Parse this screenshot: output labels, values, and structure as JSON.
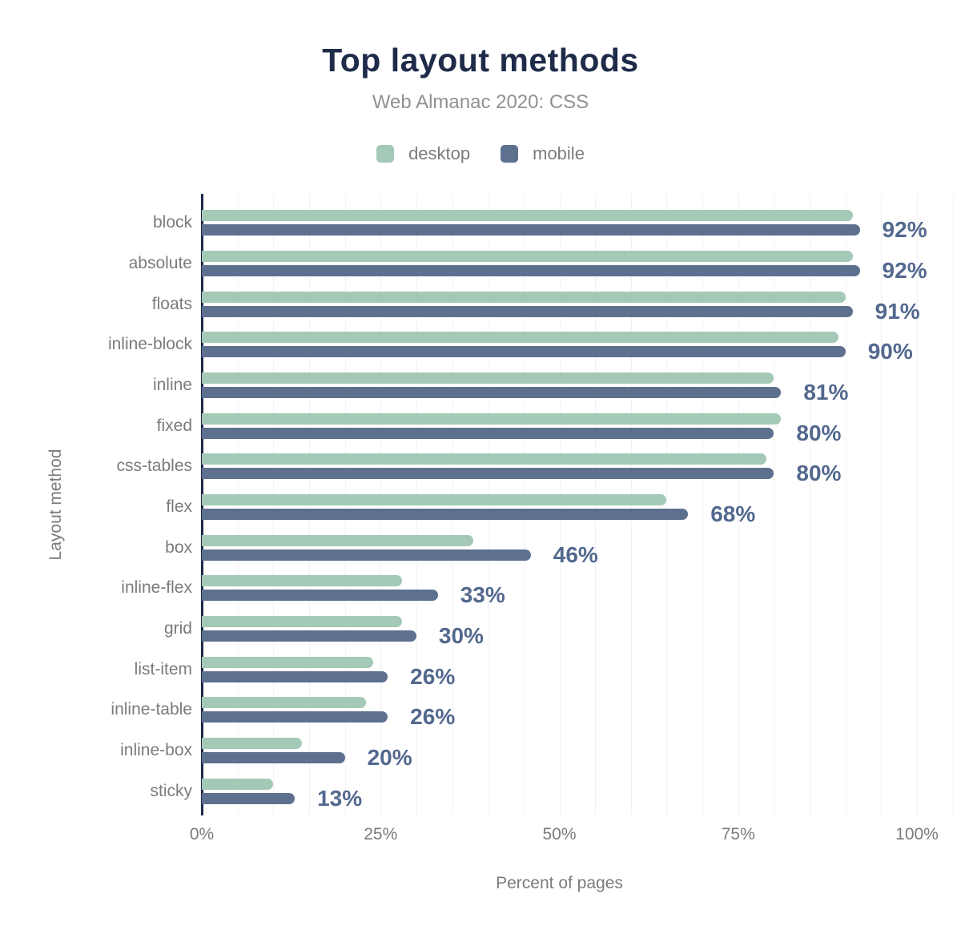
{
  "title": "Top layout methods",
  "subtitle": "Web Almanac 2020: CSS",
  "legend": [
    {
      "label": "desktop",
      "color": "#a4c9b6"
    },
    {
      "label": "mobile",
      "color": "#5e7090"
    }
  ],
  "colors": {
    "background": "#ffffff",
    "title": "#1e2b49",
    "subtitle": "#8f9193",
    "text": "#797b7e",
    "axis": "#1e2b49",
    "gridline": "#f2f2f6",
    "value_label": "#53688e",
    "desktop": "#a4c9b6",
    "mobile": "#5e7090"
  },
  "chart_data": {
    "type": "bar",
    "orientation": "horizontal",
    "title": "Top layout methods",
    "subtitle": "Web Almanac 2020: CSS",
    "xlabel": "Percent of pages",
    "ylabel": "Layout method",
    "xlim": [
      0,
      105
    ],
    "grid": {
      "vertical_gridlines_every_pct": 5,
      "gridline_extent_pct": 105
    },
    "legend_position": "top",
    "x_ticks": [
      {
        "value": 0,
        "label": "0%"
      },
      {
        "value": 25,
        "label": "25%"
      },
      {
        "value": 50,
        "label": "50%"
      },
      {
        "value": 75,
        "label": "75%"
      },
      {
        "value": 100,
        "label": "100%"
      }
    ],
    "categories": [
      "block",
      "absolute",
      "floats",
      "inline-block",
      "inline",
      "fixed",
      "css-tables",
      "flex",
      "box",
      "inline-flex",
      "grid",
      "list-item",
      "inline-table",
      "inline-box",
      "sticky"
    ],
    "series": [
      {
        "name": "desktop",
        "values": [
          91,
          91,
          90,
          89,
          80,
          81,
          79,
          65,
          38,
          28,
          28,
          24,
          23,
          14,
          10
        ]
      },
      {
        "name": "mobile",
        "values": [
          92,
          92,
          91,
          90,
          81,
          80,
          80,
          68,
          46,
          33,
          30,
          26,
          26,
          20,
          13
        ]
      }
    ],
    "value_labels": {
      "labeled_series": "mobile",
      "labels": [
        "92%",
        "92%",
        "91%",
        "90%",
        "81%",
        "80%",
        "80%",
        "68%",
        "46%",
        "33%",
        "30%",
        "26%",
        "26%",
        "20%",
        "13%"
      ]
    }
  }
}
